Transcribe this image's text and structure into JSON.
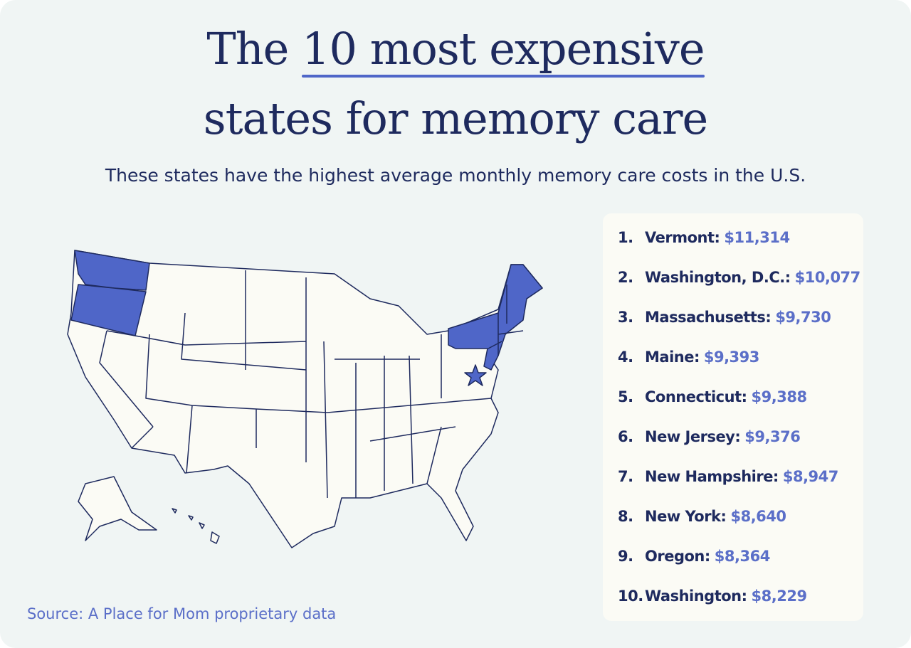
{
  "header": {
    "title_before": "The",
    "title_highlight": "10 most expensive",
    "title_after": "states for memory care",
    "subtitle": "These states have the highest average monthly memory care costs in the U.S."
  },
  "list": [
    {
      "rank": "1.",
      "state": "Vermont:",
      "cost": "$11,314"
    },
    {
      "rank": "2.",
      "state": "Washington, D.C.:",
      "cost": "$10,077"
    },
    {
      "rank": "3.",
      "state": "Massachusetts:",
      "cost": "$9,730"
    },
    {
      "rank": "4.",
      "state": "Maine:",
      "cost": "$9,393"
    },
    {
      "rank": "5.",
      "state": "Connecticut:",
      "cost": "$9,388"
    },
    {
      "rank": "6.",
      "state": "New Jersey:",
      "cost": "$9,376"
    },
    {
      "rank": "7.",
      "state": "New Hampshire:",
      "cost": "$8,947"
    },
    {
      "rank": "8.",
      "state": "New York:",
      "cost": "$8,640"
    },
    {
      "rank": "9.",
      "state": "Oregon:",
      "cost": "$8,364"
    },
    {
      "rank": "10.",
      "state": "Washington:",
      "cost": "$8,229"
    }
  ],
  "footer": {
    "source": "Source: A Place for Mom proprietary data"
  }
}
